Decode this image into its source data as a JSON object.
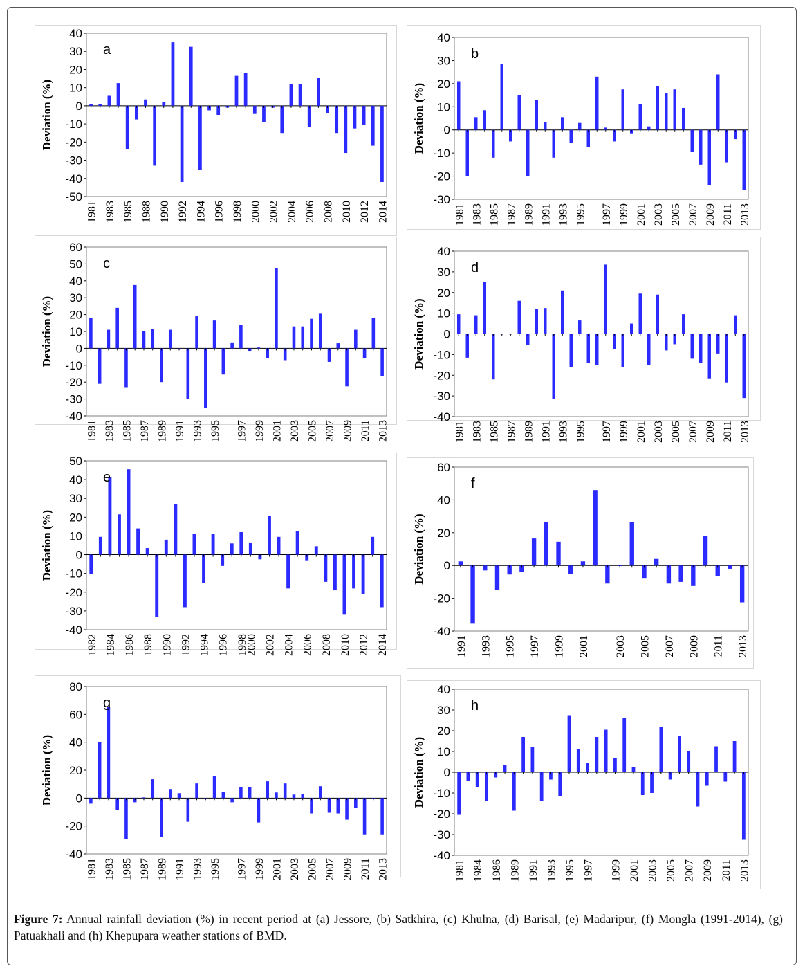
{
  "figure": {
    "caption_label": "Figure 7:",
    "caption_text": "Annual rainfall deviation (%) in recent period at (a) Jessore, (b) Satkhira, (c) Khulna, (d) Barisal, (e) Madaripur, (f) Mongla (1991-2014), (g) Patuakhali and (h) Khepupara weather stations of BMD."
  },
  "colors": {
    "bar": "#2b2bff",
    "axis": "#000000",
    "plot_border": "#808080"
  },
  "chart_data": [
    {
      "type": "bar",
      "panel_label": "a",
      "ylabel": "Deviation (%)",
      "ylim": [
        -50,
        40
      ],
      "yticks": [
        40,
        30,
        20,
        10,
        0,
        -10,
        -20,
        -30,
        -40,
        -50
      ],
      "x_tick_labels": [
        "1981",
        "1983",
        "1985",
        "1988",
        "1990",
        "1992",
        "1994",
        "1996",
        "1998",
        "2000",
        "2002",
        "2004",
        "2006",
        "2008",
        "2010",
        "2012",
        "2014"
      ],
      "values": [
        1,
        1,
        5.5,
        12.5,
        -24,
        -7.5,
        3.5,
        -33,
        2,
        35,
        -42,
        32.5,
        -35.5,
        -2.5,
        -5,
        -1,
        16.5,
        18,
        -4.5,
        -9,
        -1,
        -15,
        12,
        12,
        -11.5,
        15.5,
        -4,
        -15,
        -26,
        -12.5,
        -10.5,
        -22,
        -42
      ]
    },
    {
      "type": "bar",
      "panel_label": "b",
      "ylabel": "Deviation (%)",
      "ylim": [
        -30,
        40
      ],
      "yticks": [
        40,
        30,
        20,
        10,
        0,
        -10,
        -20,
        -30
      ],
      "x_tick_labels": [
        "1981",
        "1983",
        "1985",
        "1987",
        "1989",
        "1991",
        "1993",
        "1995",
        "1997",
        "1999",
        "2001",
        "2003",
        "2005",
        "2007",
        "2009",
        "2011",
        "2013"
      ],
      "values": [
        21,
        -20,
        5.5,
        8.5,
        -12,
        28.5,
        -5,
        15,
        -20,
        13,
        3.5,
        -12,
        5.5,
        -5.5,
        3,
        -7.5,
        23,
        1,
        -5,
        17.5,
        -1.5,
        11,
        1.5,
        19,
        16,
        17.5,
        9.5,
        -9.5,
        -15,
        -24,
        24,
        -14,
        -4,
        -26
      ]
    },
    {
      "type": "bar",
      "panel_label": "c",
      "ylabel": "Deviation (%)",
      "ylim": [
        -40,
        60
      ],
      "yticks": [
        60,
        50,
        40,
        30,
        20,
        10,
        0,
        -10,
        -20,
        -30,
        -40
      ],
      "x_tick_labels": [
        "1981",
        "1983",
        "1985",
        "1987",
        "1989",
        "1991",
        "1993",
        "1995",
        "1997",
        "1999",
        "2001",
        "2003",
        "2005",
        "2007",
        "2009",
        "2011",
        "2013"
      ],
      "values": [
        18,
        -21,
        11,
        24,
        -23,
        37.5,
        10,
        11.5,
        -20,
        11,
        0,
        -30,
        19,
        -35.5,
        16.5,
        -15.5,
        3.5,
        14,
        -1.5,
        0.5,
        -6,
        47.5,
        -7,
        13,
        13,
        17.5,
        20.5,
        -8,
        3,
        -22.5,
        11,
        -6,
        18,
        -16.5
      ]
    },
    {
      "type": "bar",
      "panel_label": "d",
      "ylabel": "Deviation (%)",
      "ylim": [
        -40,
        40
      ],
      "yticks": [
        40,
        30,
        20,
        10,
        0,
        -10,
        -20,
        -30,
        -40
      ],
      "x_tick_labels": [
        "1981",
        "1983",
        "1985",
        "1987",
        "1989",
        "1991",
        "1993",
        "1995",
        "1997",
        "1999",
        "2001",
        "2003",
        "2005",
        "2007",
        "2009",
        "2011",
        "2013"
      ],
      "values": [
        9.5,
        -11.5,
        9,
        25,
        -22,
        0,
        0,
        16,
        -5.5,
        12,
        12.5,
        -31.5,
        21,
        -16,
        6.5,
        -14,
        -15,
        33.5,
        -7.5,
        -16,
        5,
        19.5,
        -15,
        19,
        -8,
        -5,
        9.5,
        -12,
        -14,
        -21.5,
        -9.5,
        -23.5,
        9,
        -31
      ]
    },
    {
      "type": "bar",
      "panel_label": "e",
      "ylabel": "Deviation (%)",
      "ylim": [
        -40,
        50
      ],
      "yticks": [
        50,
        40,
        30,
        20,
        10,
        0,
        -10,
        -20,
        -30,
        -40
      ],
      "x_tick_labels": [
        "1982",
        "1984",
        "1986",
        "1988",
        "1990",
        "1992",
        "1994",
        "1996",
        "1998",
        "2000",
        "2002",
        "2004",
        "2006",
        "2008",
        "2010",
        "2012",
        "2014"
      ],
      "values": [
        -10.5,
        9.5,
        41.5,
        21.5,
        45.5,
        14,
        3.5,
        -33,
        8,
        27,
        -28,
        11,
        -15,
        11,
        -6,
        6,
        12,
        6.5,
        -2.5,
        20.5,
        9.5,
        -18,
        12.5,
        -3,
        4.5,
        -14.5,
        -19,
        -32,
        -18,
        -21,
        9.5,
        -28
      ]
    },
    {
      "type": "bar",
      "panel_label": "f",
      "ylabel": "Deviation (%)",
      "ylim": [
        -40,
        60
      ],
      "yticks": [
        60,
        40,
        20,
        0,
        -20,
        -40
      ],
      "x_tick_labels": [
        "1991",
        "1993",
        "1995",
        "1997",
        "1999",
        "2001",
        "2003",
        "2005",
        "2007",
        "2009",
        "2011",
        "2013"
      ],
      "values": [
        2.5,
        -35.5,
        -3,
        -15,
        -5.5,
        -4,
        16.5,
        26.5,
        14.5,
        -5,
        2.5,
        46,
        -11,
        0,
        26.5,
        -8,
        4,
        -11,
        -10,
        -12.5,
        18,
        -6.5,
        -2,
        -22.5
      ]
    },
    {
      "type": "bar",
      "panel_label": "g",
      "ylabel": "Deviation (%)",
      "ylim": [
        -40,
        80
      ],
      "yticks": [
        80,
        60,
        40,
        20,
        0,
        -20,
        -40
      ],
      "x_tick_labels": [
        "1981",
        "1983",
        "1985",
        "1987",
        "1989",
        "1991",
        "1993",
        "1995",
        "1997",
        "1999",
        "2001",
        "2003",
        "2005",
        "2007",
        "2009",
        "2011",
        "2013"
      ],
      "values": [
        -4,
        40,
        65.5,
        -8.5,
        -29.5,
        -3,
        0.5,
        13.5,
        -28,
        6.5,
        3.5,
        -17,
        10.5,
        0,
        16,
        4.5,
        -3,
        8,
        8,
        -17.5,
        12,
        4,
        10.5,
        2.5,
        3,
        -11,
        8.5,
        -10.5,
        -11,
        -15.5,
        -7,
        -26,
        0,
        -26
      ]
    },
    {
      "type": "bar",
      "panel_label": "h",
      "ylabel": "Deviation (%)",
      "ylim": [
        -40,
        40
      ],
      "yticks": [
        40,
        30,
        20,
        10,
        0,
        -10,
        -20,
        -30,
        -40
      ],
      "x_tick_labels": [
        "1981",
        "1984",
        "1986",
        "1989",
        "1991",
        "1993",
        "1995",
        "1997",
        "1999",
        "2001",
        "2003",
        "2005",
        "2007",
        "2009",
        "2011",
        "2013"
      ],
      "values": [
        -20.5,
        -4,
        -7,
        -14,
        -2.5,
        3.5,
        -18.5,
        17,
        12,
        -14,
        -3.5,
        -11.5,
        27.5,
        11,
        4.5,
        17,
        20.5,
        7,
        26,
        2.5,
        -11,
        -10,
        22,
        -3.5,
        17.5,
        10,
        -16.5,
        -6.5,
        12.5,
        -4.5,
        15,
        -32.5
      ]
    }
  ]
}
